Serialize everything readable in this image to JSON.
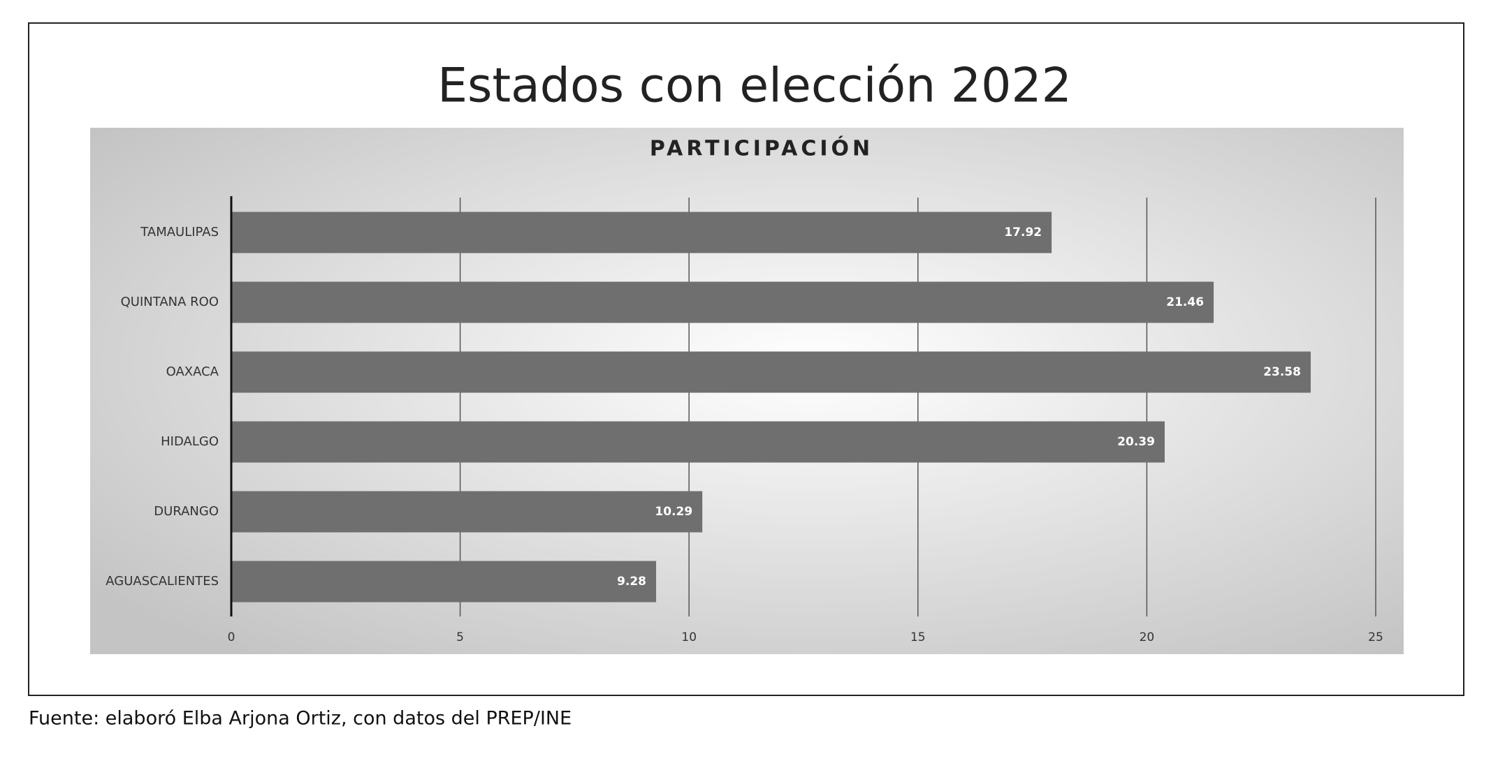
{
  "chart_data": {
    "type": "hbar",
    "title": "Estados con elección 2022",
    "subtitle": "PARTICIPACIÓN",
    "categories": [
      "TAMAULIPAS",
      "QUINTANA ROO",
      "OAXACA",
      "HIDALGO",
      "DURANGO",
      "AGUASCALIENTES"
    ],
    "values": [
      17.92,
      21.46,
      23.58,
      20.39,
      10.29,
      9.28
    ],
    "color": "#6f6f6f",
    "xlim": [
      0,
      25
    ],
    "xticks": [
      0,
      5,
      10,
      15,
      20,
      25
    ],
    "grid": true
  },
  "source": "Fuente: elaboró Elba Arjona Ortiz, con datos del PREP/INE"
}
